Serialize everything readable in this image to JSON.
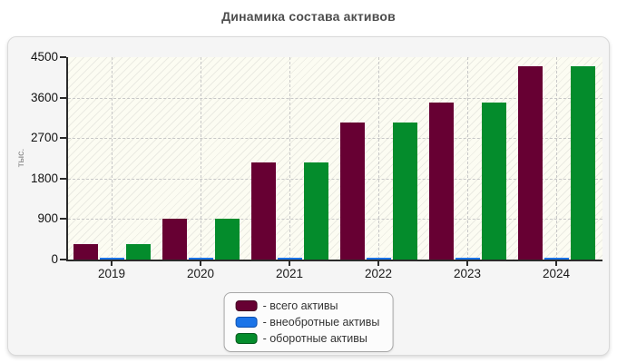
{
  "page": {
    "title": "Динамика состава активов"
  },
  "chart_data": {
    "type": "bar",
    "title": "Динамика состава активов",
    "xlabel": "",
    "ylabel": "тыс.",
    "categories": [
      "2019",
      "2020",
      "2021",
      "2022",
      "2023",
      "2024"
    ],
    "series": [
      {
        "key": "total-assets",
        "name": "всего активы",
        "color": "#670033",
        "border_color": "#40001f",
        "values": [
          350,
          900,
          2150,
          3050,
          3500,
          4300
        ]
      },
      {
        "key": "non-current-assets",
        "name": "внеобротные активы",
        "color": "#1b74e8",
        "border_color": "#0d4fae",
        "values": [
          40,
          40,
          40,
          40,
          40,
          40
        ]
      },
      {
        "key": "current-assets",
        "name": "оборотные активы",
        "color": "#048c2c",
        "border_color": "#02591c",
        "values": [
          350,
          900,
          2150,
          3050,
          3500,
          4300
        ]
      }
    ],
    "ylim": [
      0,
      4500
    ],
    "yticks": [
      0,
      900,
      1800,
      2700,
      3600,
      4500
    ],
    "grid": "dashed horizontal and vertical gridlines, hatched plot background",
    "legend_position": "bottom-center",
    "legend": [
      {
        "label": "- всего активы"
      },
      {
        "label": "- внеобротные активы"
      },
      {
        "label": "- оборотные активы"
      }
    ]
  }
}
